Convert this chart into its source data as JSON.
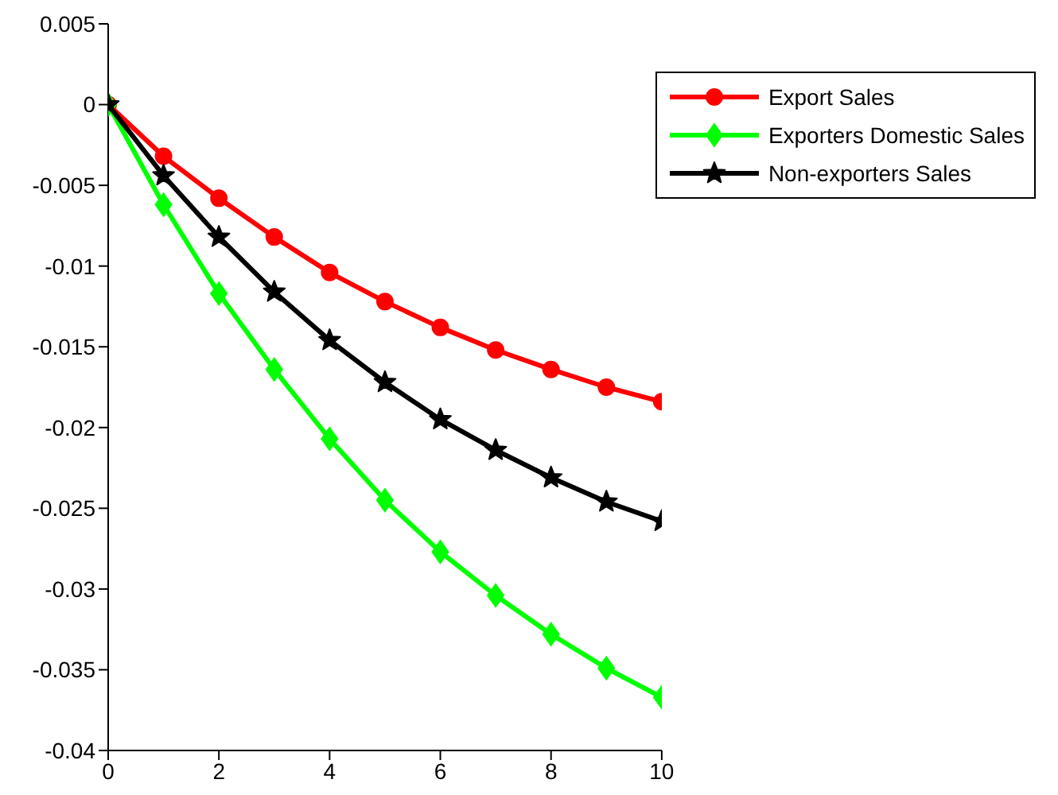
{
  "chart_data": {
    "type": "line",
    "x": [
      0,
      1,
      2,
      3,
      4,
      5,
      6,
      7,
      8,
      9,
      10
    ],
    "series": [
      {
        "name": "Export Sales",
        "color": "#ff0000",
        "marker": "circle",
        "values": [
          0,
          -0.0032,
          -0.0058,
          -0.0082,
          -0.0104,
          -0.0122,
          -0.0138,
          -0.0152,
          -0.0164,
          -0.0175,
          -0.0184
        ]
      },
      {
        "name": "Exporters Domestic Sales",
        "color": "#00ff00",
        "marker": "diamond",
        "values": [
          0,
          -0.0062,
          -0.0117,
          -0.0164,
          -0.0207,
          -0.0245,
          -0.0277,
          -0.0304,
          -0.0328,
          -0.0349,
          -0.0367
        ]
      },
      {
        "name": "Non-exporters Sales",
        "color": "#000000",
        "marker": "star",
        "values": [
          0,
          -0.0044,
          -0.0082,
          -0.0116,
          -0.0146,
          -0.0172,
          -0.0195,
          -0.0214,
          -0.0231,
          -0.0246,
          -0.0258
        ]
      }
    ],
    "xlim": [
      0,
      10
    ],
    "xticks": [
      0,
      2,
      4,
      6,
      8,
      10
    ],
    "ylim": [
      -0.04,
      0.005
    ],
    "yticks": [
      -0.04,
      -0.035,
      -0.03,
      -0.025,
      -0.02,
      -0.015,
      -0.01,
      -0.005,
      0,
      0.005
    ],
    "legend": "top right",
    "grid": false,
    "line_style": "solid"
  }
}
